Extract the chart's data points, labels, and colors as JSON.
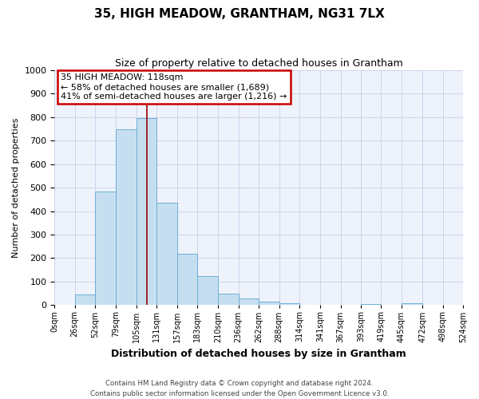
{
  "title": "35, HIGH MEADOW, GRANTHAM, NG31 7LX",
  "subtitle": "Size of property relative to detached houses in Grantham",
  "xlabel": "Distribution of detached houses by size in Grantham",
  "ylabel": "Number of detached properties",
  "bin_labels": [
    "0sqm",
    "26sqm",
    "52sqm",
    "79sqm",
    "105sqm",
    "131sqm",
    "157sqm",
    "183sqm",
    "210sqm",
    "236sqm",
    "262sqm",
    "288sqm",
    "314sqm",
    "341sqm",
    "367sqm",
    "393sqm",
    "419sqm",
    "445sqm",
    "472sqm",
    "498sqm",
    "524sqm"
  ],
  "bin_edges": [
    0,
    26,
    52,
    79,
    105,
    131,
    157,
    183,
    210,
    236,
    262,
    288,
    314,
    341,
    367,
    393,
    419,
    445,
    472,
    498,
    524
  ],
  "bar_heights": [
    0,
    45,
    485,
    750,
    795,
    435,
    220,
    125,
    50,
    30,
    15,
    8,
    0,
    0,
    0,
    5,
    0,
    8,
    0,
    0,
    0
  ],
  "bar_color": "#c6dff0",
  "bar_edge_color": "#6baed6",
  "property_value": 118,
  "vline_color": "#990000",
  "annotation_box_color": "#cc0000",
  "annotation_text_line1": "35 HIGH MEADOW: 118sqm",
  "annotation_text_line2": "← 58% of detached houses are smaller (1,689)",
  "annotation_text_line3": "41% of semi-detached houses are larger (1,216) →",
  "ylim": [
    0,
    1000
  ],
  "yticks": [
    0,
    100,
    200,
    300,
    400,
    500,
    600,
    700,
    800,
    900,
    1000
  ],
  "background_color": "#eef2fb",
  "grid_color": "#c8d0e8",
  "footer_line1": "Contains HM Land Registry data © Crown copyright and database right 2024.",
  "footer_line2": "Contains public sector information licensed under the Open Government Licence v3.0."
}
